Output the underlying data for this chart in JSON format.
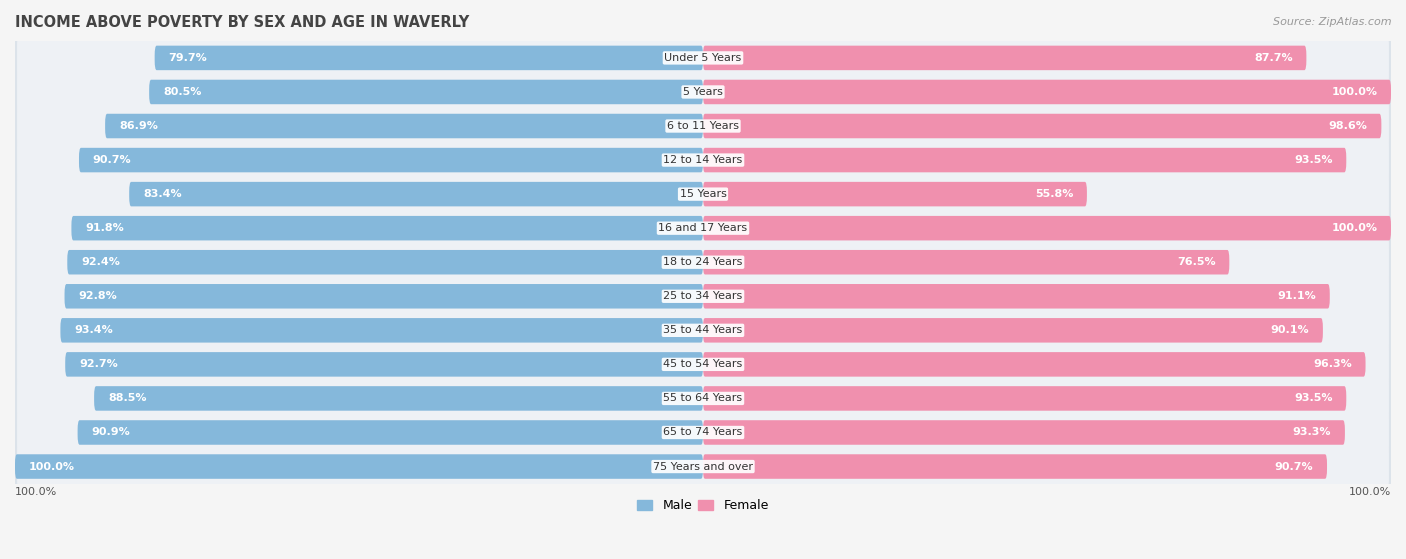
{
  "title": "INCOME ABOVE POVERTY BY SEX AND AGE IN WAVERLY",
  "source": "Source: ZipAtlas.com",
  "categories": [
    "Under 5 Years",
    "5 Years",
    "6 to 11 Years",
    "12 to 14 Years",
    "15 Years",
    "16 and 17 Years",
    "18 to 24 Years",
    "25 to 34 Years",
    "35 to 44 Years",
    "45 to 54 Years",
    "55 to 64 Years",
    "65 to 74 Years",
    "75 Years and over"
  ],
  "male_values": [
    79.7,
    80.5,
    86.9,
    90.7,
    83.4,
    91.8,
    92.4,
    92.8,
    93.4,
    92.7,
    88.5,
    90.9,
    100.0
  ],
  "female_values": [
    87.7,
    100.0,
    98.6,
    93.5,
    55.8,
    100.0,
    76.5,
    91.1,
    90.1,
    96.3,
    93.5,
    93.3,
    90.7
  ],
  "male_color": "#85b8db",
  "female_color": "#f090ae",
  "male_label": "Male",
  "female_label": "Female",
  "bg_color": "#f5f5f5",
  "row_color_light": "#e8edf2",
  "row_color_dark": "#dde3ea",
  "title_fontsize": 10.5,
  "source_fontsize": 8,
  "label_fontsize": 8,
  "bar_label_fontsize": 8,
  "legend_fontsize": 9,
  "x_max": 100.0,
  "axis_label": "100.0%"
}
